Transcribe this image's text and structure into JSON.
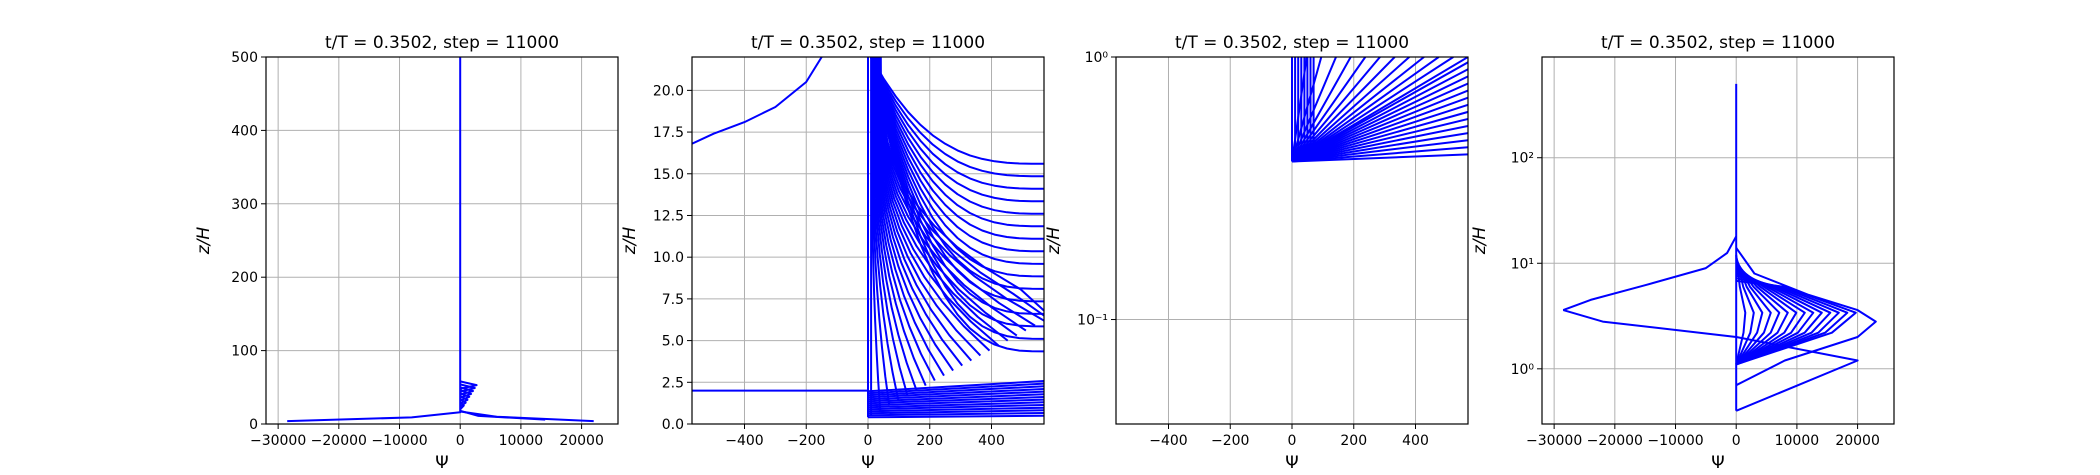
{
  "chart_data": [
    {
      "type": "line",
      "title": "t/T = 0.3502, step = 11000",
      "xlabel": "Ψ",
      "ylabel": "z/H",
      "xscale": "linear",
      "yscale": "linear",
      "xlim": [
        -32000,
        26000
      ],
      "ylim": [
        0,
        500
      ],
      "xticks": [
        -30000,
        -20000,
        -10000,
        0,
        10000,
        20000
      ],
      "yticks": [
        0,
        100,
        200,
        300,
        400,
        500
      ],
      "grid": true,
      "line_color": "#0000ff",
      "series": [
        {
          "x": [
            -28500,
            -8000,
            0,
            0
          ],
          "y": [
            4,
            9,
            16,
            500
          ]
        },
        {
          "x": [
            22000,
            6000,
            0
          ],
          "y": [
            4,
            10,
            17
          ]
        },
        {
          "x": [
            14000,
            3000,
            0
          ],
          "y": [
            6,
            11,
            18
          ]
        }
      ]
    },
    {
      "type": "line",
      "title": "t/T = 0.3502, step = 11000",
      "xlabel": "Ψ",
      "ylabel": "z/H",
      "xscale": "linear",
      "yscale": "linear",
      "xlim": [
        -570,
        570
      ],
      "ylim": [
        0,
        22
      ],
      "xticks": [
        -400,
        -200,
        0,
        200,
        400
      ],
      "yticks": [
        0.0,
        2.5,
        5.0,
        7.5,
        10.0,
        12.5,
        15.0,
        17.5,
        20.0
      ],
      "grid": true,
      "line_color": "#0000ff",
      "series": [
        {
          "x": [
            -570,
            -500,
            -400,
            -300,
            -200,
            -150
          ],
          "y": [
            16.8,
            17.4,
            18.1,
            19.0,
            20.5,
            22.0
          ]
        },
        {
          "x": [
            -570,
            0
          ],
          "y": [
            2.0,
            2.0
          ]
        },
        {
          "x": [
            0,
            0
          ],
          "y": [
            0.4,
            22
          ]
        }
      ]
    },
    {
      "type": "line",
      "title": "t/T = 0.3502, step = 11000",
      "xlabel": "Ψ",
      "ylabel": "z/H",
      "xscale": "linear",
      "yscale": "log",
      "xlim": [
        -570,
        570
      ],
      "ylim": [
        0.04,
        1.0
      ],
      "xticks": [
        -400,
        -200,
        0,
        200,
        400
      ],
      "yticks": [
        0.1,
        1.0
      ],
      "ytick_labels": [
        "10⁻¹",
        "10⁰"
      ],
      "grid": true,
      "line_color": "#0000ff"
    },
    {
      "type": "line",
      "title": "t/T = 0.3502, step = 11000",
      "xlabel": "Ψ",
      "ylabel": "z/H",
      "xscale": "linear",
      "yscale": "log",
      "xlim": [
        -32000,
        26000
      ],
      "ylim": [
        0.3,
        900
      ],
      "xticks": [
        -30000,
        -20000,
        -10000,
        0,
        10000,
        20000
      ],
      "yticks": [
        1,
        10,
        100
      ],
      "ytick_labels": [
        "10⁰",
        "10¹",
        "10²"
      ],
      "grid": true,
      "line_color": "#0000ff",
      "series": [
        {
          "x": [
            0,
            0
          ],
          "y": [
            0.4,
            500
          ]
        },
        {
          "x": [
            -28500,
            -24000,
            -15000,
            -5000,
            -1500,
            0
          ],
          "y": [
            3.6,
            4.5,
            6.2,
            9.0,
            12.5,
            18
          ]
        },
        {
          "x": [
            -28500,
            -22000,
            0,
            20000,
            0
          ],
          "y": [
            3.6,
            2.8,
            2.0,
            1.2,
            0.4
          ]
        },
        {
          "x": [
            0,
            3000,
            12000,
            20000,
            23000,
            20000,
            8000,
            0
          ],
          "y": [
            14,
            8,
            5,
            3.6,
            2.8,
            2.0,
            1.2,
            0.7
          ]
        }
      ]
    }
  ]
}
